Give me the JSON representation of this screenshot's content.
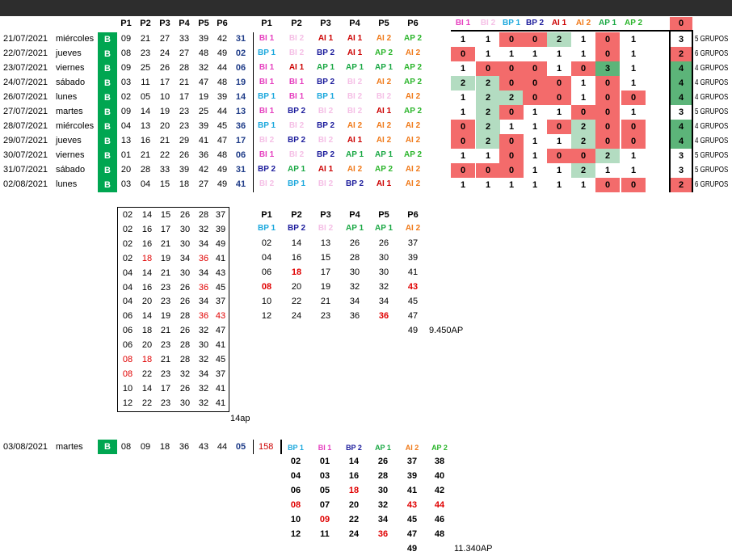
{
  "colors": {
    "BI 1": "#e63fbf",
    "BI 2": "#f5c0e6",
    "BP 1": "#1ca8dd",
    "BP 2": "#1c1c9c",
    "AI 1": "#cc0000",
    "AI 2": "#f07a1a",
    "AP 1": "#1aa844",
    "AP 2": "#2bb52b",
    "red_bg": "#f36b6b",
    "green_bg": "#b3dcc1",
    "dgreen_bg": "#5cb479",
    "b_green": "#00a651"
  },
  "headers": {
    "p": [
      "P1",
      "P2",
      "P3",
      "P4",
      "P5",
      "P6"
    ],
    "groups": [
      "BI 1",
      "BI 2",
      "BP 1",
      "BP 2",
      "AI 1",
      "AI 2",
      "AP 1",
      "AP 2"
    ],
    "last": "0"
  },
  "rows": [
    {
      "date": "21/07/2021",
      "day": "miércoles",
      "b": "B",
      "nums": [
        "09",
        "21",
        "27",
        "33",
        "39",
        "42"
      ],
      "bonus": "31",
      "cats": [
        "BI 1",
        "BI 2",
        "AI 1",
        "AI 1",
        "AI 2",
        "AP 2"
      ],
      "cnt": [
        "1",
        "1",
        "0",
        "0",
        "2",
        "1",
        "0",
        "1"
      ],
      "bg": [
        "",
        "",
        "r",
        "r",
        "g",
        "",
        "r",
        ""
      ],
      "total": "3",
      "tbg": "",
      "grupos": "5 GRUPOS"
    },
    {
      "date": "22/07/2021",
      "day": "jueves",
      "b": "B",
      "nums": [
        "08",
        "23",
        "24",
        "27",
        "48",
        "49"
      ],
      "bonus": "02",
      "cats": [
        "BP 1",
        "BI 2",
        "BP 2",
        "AI 1",
        "AP 2",
        "AI 2"
      ],
      "cnt": [
        "0",
        "1",
        "1",
        "1",
        "1",
        "1",
        "0",
        "1"
      ],
      "bg": [
        "r",
        "",
        "",
        "",
        "",
        "",
        "r",
        ""
      ],
      "total": "2",
      "tbg": "r",
      "grupos": "6 GRUPOS"
    },
    {
      "date": "23/07/2021",
      "day": "viernes",
      "b": "B",
      "nums": [
        "09",
        "25",
        "26",
        "28",
        "32",
        "44"
      ],
      "bonus": "06",
      "cats": [
        "BI 1",
        "AI 1",
        "AP 1",
        "AP 1",
        "AP 1",
        "AP 2"
      ],
      "cnt": [
        "1",
        "0",
        "0",
        "0",
        "1",
        "0",
        "3",
        "1"
      ],
      "bg": [
        "",
        "r",
        "r",
        "r",
        "",
        "r",
        "d",
        ""
      ],
      "total": "4",
      "tbg": "d",
      "grupos": "4 GRUPOS"
    },
    {
      "date": "24/07/2021",
      "day": "sábado",
      "b": "B",
      "nums": [
        "03",
        "11",
        "17",
        "21",
        "47",
        "48"
      ],
      "bonus": "19",
      "cats": [
        "BI 1",
        "BI 1",
        "BP 2",
        "BI 2",
        "AI 2",
        "AP 2"
      ],
      "cnt": [
        "2",
        "2",
        "0",
        "0",
        "0",
        "1",
        "0",
        "1"
      ],
      "bg": [
        "g",
        "g",
        "r",
        "r",
        "r",
        "",
        "r",
        ""
      ],
      "total": "4",
      "tbg": "d",
      "grupos": "4 GRUPOS"
    },
    {
      "date": "26/07/2021",
      "day": "lunes",
      "b": "B",
      "nums": [
        "02",
        "05",
        "10",
        "17",
        "19",
        "39"
      ],
      "bonus": "14",
      "cats": [
        "BP 1",
        "BI 1",
        "BP 1",
        "BI 2",
        "BI 2",
        "AI 2"
      ],
      "cnt": [
        "1",
        "2",
        "2",
        "0",
        "0",
        "1",
        "0",
        "0"
      ],
      "bg": [
        "",
        "g",
        "g",
        "r",
        "r",
        "",
        "r",
        "r"
      ],
      "total": "4",
      "tbg": "d",
      "grupos": "4 GRUPOS"
    },
    {
      "date": "27/07/2021",
      "day": "martes",
      "b": "B",
      "nums": [
        "09",
        "14",
        "19",
        "23",
        "25",
        "44"
      ],
      "bonus": "13",
      "cats": [
        "BI 1",
        "BP 2",
        "BI 2",
        "BI 2",
        "AI 1",
        "AP 2"
      ],
      "cnt": [
        "1",
        "2",
        "0",
        "1",
        "1",
        "0",
        "0",
        "1"
      ],
      "bg": [
        "",
        "g",
        "r",
        "",
        "",
        "r",
        "r",
        ""
      ],
      "total": "3",
      "tbg": "",
      "grupos": "5 GRUPOS"
    },
    {
      "date": "28/07/2021",
      "day": "miércoles",
      "b": "B",
      "nums": [
        "04",
        "13",
        "20",
        "23",
        "39",
        "45"
      ],
      "bonus": "36",
      "cats": [
        "BP 1",
        "BI 2",
        "BP 2",
        "AI 2",
        "AI 2",
        "AI 2"
      ],
      "cnt": [
        "0",
        "2",
        "1",
        "1",
        "0",
        "2",
        "0",
        "0"
      ],
      "bg": [
        "r",
        "g",
        "",
        "",
        "r",
        "g",
        "r",
        "r"
      ],
      "total": "4",
      "tbg": "d",
      "grupos": "4 GRUPOS"
    },
    {
      "date": "29/07/2021",
      "day": "jueves",
      "b": "B",
      "nums": [
        "13",
        "16",
        "21",
        "29",
        "41",
        "47"
      ],
      "bonus": "17",
      "cats": [
        "BI 2",
        "BP 2",
        "BI 2",
        "AI 1",
        "AI 2",
        "AI 2"
      ],
      "cnt": [
        "0",
        "2",
        "0",
        "1",
        "1",
        "2",
        "0",
        "0"
      ],
      "bg": [
        "r",
        "g",
        "r",
        "",
        "",
        "g",
        "r",
        "r"
      ],
      "total": "4",
      "tbg": "d",
      "grupos": "4 GRUPOS"
    },
    {
      "date": "30/07/2021",
      "day": "viernes",
      "b": "B",
      "nums": [
        "01",
        "21",
        "22",
        "26",
        "36",
        "48"
      ],
      "bonus": "06",
      "cats": [
        "BI 1",
        "BI 2",
        "BP 2",
        "AP 1",
        "AP 1",
        "AP 2"
      ],
      "cnt": [
        "1",
        "1",
        "0",
        "1",
        "0",
        "0",
        "2",
        "1"
      ],
      "bg": [
        "",
        "",
        "r",
        "",
        "r",
        "r",
        "g",
        ""
      ],
      "total": "3",
      "tbg": "",
      "grupos": "5 GRUPOS"
    },
    {
      "date": "31/07/2021",
      "day": "sábado",
      "b": "B",
      "nums": [
        "20",
        "28",
        "33",
        "39",
        "42",
        "49"
      ],
      "bonus": "31",
      "cats": [
        "BP 2",
        "AP 1",
        "AI 1",
        "AI 2",
        "AP 2",
        "AI 2"
      ],
      "cnt": [
        "0",
        "0",
        "0",
        "1",
        "1",
        "2",
        "1",
        "1"
      ],
      "bg": [
        "r",
        "r",
        "r",
        "",
        "",
        "g",
        "",
        ""
      ],
      "total": "3",
      "tbg": "",
      "grupos": "5 GRUPOS"
    },
    {
      "date": "02/08/2021",
      "day": "lunes",
      "b": "B",
      "nums": [
        "03",
        "04",
        "15",
        "18",
        "27",
        "49"
      ],
      "bonus": "41",
      "cats": [
        "BI 2",
        "BP 1",
        "BI 2",
        "BP 2",
        "AI 1",
        "AI 2"
      ],
      "cnt": [
        "1",
        "1",
        "1",
        "1",
        "1",
        "1",
        "0",
        "0"
      ],
      "bg": [
        "",
        "",
        "",
        "",
        "",
        "",
        "r",
        "r"
      ],
      "total": "2",
      "tbg": "r",
      "grupos": "6 GRUPOS"
    }
  ],
  "box_list": [
    [
      [
        "02"
      ],
      [
        "14"
      ],
      [
        "15"
      ],
      [
        "26"
      ],
      [
        "28"
      ],
      [
        "37"
      ]
    ],
    [
      [
        "02"
      ],
      [
        "16"
      ],
      [
        "17"
      ],
      [
        "30"
      ],
      [
        "32"
      ],
      [
        "39"
      ]
    ],
    [
      [
        "02"
      ],
      [
        "16"
      ],
      [
        "21"
      ],
      [
        "30"
      ],
      [
        "34"
      ],
      [
        "49"
      ]
    ],
    [
      [
        "02"
      ],
      [
        "18",
        "r"
      ],
      [
        "19"
      ],
      [
        "34"
      ],
      [
        "36",
        "r"
      ],
      [
        "41"
      ]
    ],
    [
      [
        "04"
      ],
      [
        "14"
      ],
      [
        "21"
      ],
      [
        "30"
      ],
      [
        "34"
      ],
      [
        "43"
      ]
    ],
    [
      [
        "04"
      ],
      [
        "16"
      ],
      [
        "23"
      ],
      [
        "26"
      ],
      [
        "36",
        "r"
      ],
      [
        "45"
      ]
    ],
    [
      [
        "04"
      ],
      [
        "20"
      ],
      [
        "23"
      ],
      [
        "26"
      ],
      [
        "34"
      ],
      [
        "37"
      ]
    ],
    [
      [
        "06"
      ],
      [
        "14"
      ],
      [
        "19"
      ],
      [
        "28"
      ],
      [
        "36",
        "r"
      ],
      [
        "43",
        "r"
      ]
    ],
    [
      [
        "06"
      ],
      [
        "18"
      ],
      [
        "21"
      ],
      [
        "26"
      ],
      [
        "32"
      ],
      [
        "47"
      ]
    ],
    [
      [
        "06"
      ],
      [
        "20"
      ],
      [
        "23"
      ],
      [
        "28"
      ],
      [
        "30"
      ],
      [
        "41"
      ]
    ],
    [
      [
        "08",
        "r"
      ],
      [
        "18",
        "r"
      ],
      [
        "21"
      ],
      [
        "28"
      ],
      [
        "32"
      ],
      [
        "45"
      ]
    ],
    [
      [
        "08",
        "r"
      ],
      [
        "22"
      ],
      [
        "23"
      ],
      [
        "32"
      ],
      [
        "34"
      ],
      [
        "37"
      ]
    ],
    [
      [
        "10"
      ],
      [
        "14"
      ],
      [
        "17"
      ],
      [
        "26"
      ],
      [
        "32"
      ],
      [
        "41"
      ]
    ],
    [
      [
        "12"
      ],
      [
        "22"
      ],
      [
        "23"
      ],
      [
        "30"
      ],
      [
        "32"
      ],
      [
        "41"
      ]
    ]
  ],
  "box_count": "14ap",
  "mid": {
    "cats": [
      "BP 1",
      "BP 2",
      "BI 2",
      "AP 1",
      "AP 1",
      "AI 2"
    ],
    "cols": [
      [
        [
          "02"
        ],
        [
          "04"
        ],
        [
          "06"
        ],
        [
          "08",
          "r"
        ],
        [
          "10"
        ],
        [
          "12"
        ]
      ],
      [
        [
          "14"
        ],
        [
          "16"
        ],
        [
          "18",
          "r"
        ],
        [
          "20"
        ],
        [
          "22"
        ],
        [
          "24"
        ]
      ],
      [
        [
          "13"
        ],
        [
          "15"
        ],
        [
          "17"
        ],
        [
          "19"
        ],
        [
          "21"
        ],
        [
          "23"
        ]
      ],
      [
        [
          "26"
        ],
        [
          "28"
        ],
        [
          "30"
        ],
        [
          "32"
        ],
        [
          "34"
        ],
        [
          "36"
        ]
      ],
      [
        [
          "26"
        ],
        [
          "30"
        ],
        [
          "30"
        ],
        [
          "32"
        ],
        [
          "34"
        ],
        [
          "36",
          "r"
        ]
      ],
      [
        [
          "37"
        ],
        [
          "39"
        ],
        [
          "41"
        ],
        [
          "43",
          "r"
        ],
        [
          "45"
        ],
        [
          "47"
        ],
        [
          "49"
        ]
      ]
    ],
    "total": "9.450AP"
  },
  "bottom": {
    "date": "03/08/2021",
    "day": "martes",
    "b": "B",
    "nums": [
      "08",
      "09",
      "18",
      "36",
      "43",
      "44"
    ],
    "bonus": "05",
    "extra": "158",
    "cats": [
      "BP 1",
      "BI 1",
      "BP 2",
      "AP 1",
      "AI 2",
      "AP 2"
    ],
    "cols": [
      [
        [
          "02"
        ],
        [
          "04"
        ],
        [
          "06"
        ],
        [
          "08",
          "r"
        ],
        [
          "10"
        ],
        [
          "12"
        ]
      ],
      [
        [
          "01"
        ],
        [
          "03"
        ],
        [
          "05"
        ],
        [
          "07"
        ],
        [
          "09",
          "r"
        ],
        [
          "11"
        ]
      ],
      [
        [
          "14"
        ],
        [
          "16"
        ],
        [
          "18",
          "r"
        ],
        [
          "20"
        ],
        [
          "22"
        ],
        [
          "24"
        ]
      ],
      [
        [
          "26"
        ],
        [
          "28"
        ],
        [
          "30"
        ],
        [
          "32"
        ],
        [
          "34"
        ],
        [
          "36",
          "r"
        ]
      ],
      [
        [
          "37"
        ],
        [
          "39"
        ],
        [
          "41"
        ],
        [
          "43",
          "r"
        ],
        [
          "45"
        ],
        [
          "47"
        ],
        [
          "49"
        ]
      ],
      [
        [
          "38"
        ],
        [
          "40"
        ],
        [
          "42"
        ],
        [
          "44",
          "r"
        ],
        [
          "46"
        ],
        [
          "48"
        ]
      ]
    ],
    "total": "11.340AP"
  }
}
